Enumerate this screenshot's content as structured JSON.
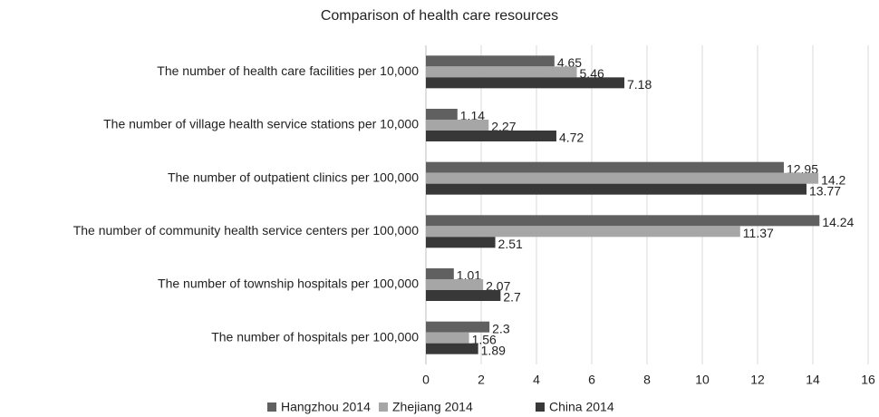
{
  "chart_data": {
    "type": "hbar",
    "title": "Comparison of health care resources",
    "categories": [
      "The number of health care facilities per 10,000",
      "The number of village health service stations per 10,000",
      "The number of outpatient clinics per 100,000",
      "The number of community health service centers per 100,000",
      "The number of township hospitals per 100,000",
      "The number of hospitals per 100,000"
    ],
    "series": [
      {
        "name": "Hangzhou 2014",
        "color": "#606060",
        "values": [
          4.65,
          1.14,
          12.95,
          14.24,
          1.01,
          2.3
        ]
      },
      {
        "name": "Zhejiang 2014",
        "color": "#a6a6a6",
        "values": [
          5.46,
          2.27,
          14.2,
          11.37,
          2.07,
          1.56
        ]
      },
      {
        "name": "China 2014",
        "color": "#383838",
        "values": [
          7.18,
          4.72,
          13.77,
          2.51,
          2.7,
          1.89
        ]
      }
    ],
    "xlim": [
      0,
      16
    ],
    "xticks": [
      0,
      2,
      4,
      6,
      8,
      10,
      12,
      14,
      16
    ],
    "grid": true,
    "legend": "bottom"
  }
}
